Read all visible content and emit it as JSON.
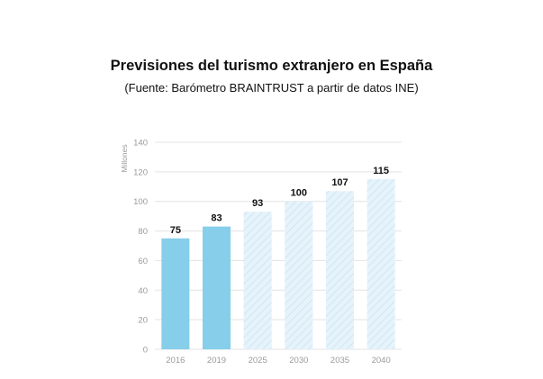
{
  "header": {
    "title": "Previsiones del turismo extranjero en España",
    "subtitle": "(Fuente: Barómetro BRAINTRUST a partir de datos INE)"
  },
  "chart_data": {
    "type": "bar",
    "categories": [
      "2016",
      "2019",
      "2025",
      "2030",
      "2035",
      "2040"
    ],
    "values": [
      75,
      83,
      93,
      100,
      107,
      115
    ],
    "data_labels": [
      "75",
      "83",
      "93",
      "100",
      "107",
      "115"
    ],
    "forecast": [
      false,
      false,
      true,
      true,
      true,
      true
    ],
    "title": "Previsiones del turismo extranjero en España",
    "subtitle": "(Fuente: Barómetro BRAINTRUST a partir de datos INE)",
    "xlabel": "",
    "ylabel": "Millones",
    "ylim": [
      0,
      140
    ],
    "yticks": [
      "0",
      "20",
      "40",
      "60",
      "80",
      "100",
      "120",
      "140"
    ],
    "grid": true,
    "colors": {
      "actual": "#87ceeb",
      "forecast": "#e6f3fb",
      "forecast_pattern": "#cfe6f4",
      "grid": "#e3e3e3",
      "tick_text": "#9a9a9a",
      "label_text": "#111111"
    }
  }
}
